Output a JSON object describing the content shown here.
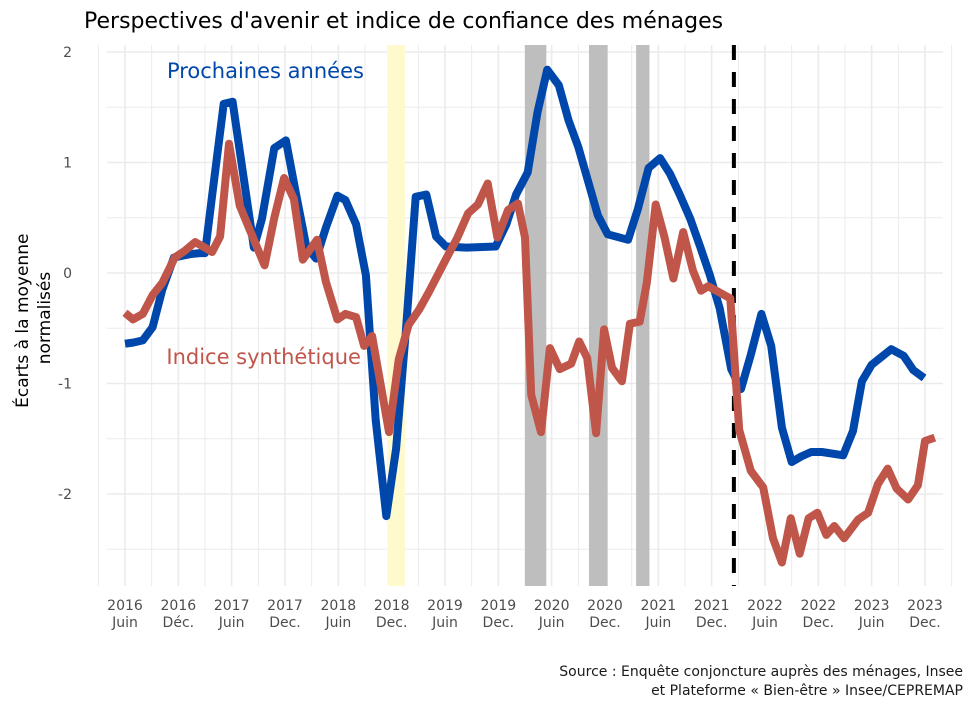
{
  "chart_data": {
    "type": "line",
    "title": "Perspectives d'avenir et indice de confiance des ménages",
    "xlabel": "",
    "ylabel_lines": [
      "Écarts à la moyenne",
      "normalisés"
    ],
    "x_unit": "months since June 2016",
    "xlim": [
      -3,
      93
    ],
    "ylim": [
      -2.8,
      2.05
    ],
    "yticks": [
      2,
      1,
      0,
      -1,
      -2
    ],
    "ytick_labels": [
      "2",
      "1",
      "0",
      "-1",
      "-2"
    ],
    "xticks": [
      0,
      6,
      12,
      18,
      24,
      30,
      36,
      42,
      48,
      54,
      60,
      66,
      72,
      78,
      84,
      90
    ],
    "xtick_labels": [
      [
        "2016",
        "Juin"
      ],
      [
        "2016",
        "Déc."
      ],
      [
        "2017",
        "Juin"
      ],
      [
        "2017",
        "Dec."
      ],
      [
        "2018",
        "Juin"
      ],
      [
        "2018",
        "Dec."
      ],
      [
        "2019",
        "Juin"
      ],
      [
        "2019",
        "Dec."
      ],
      [
        "2020",
        "Juin"
      ],
      [
        "2020",
        "Dec."
      ],
      [
        "2021",
        "Juin"
      ],
      [
        "2021",
        "Dec."
      ],
      [
        "2022",
        "Juin"
      ],
      [
        "2022",
        "Dec."
      ],
      [
        "2023",
        "Juin"
      ],
      [
        "2023",
        "Dec."
      ]
    ],
    "grid": true,
    "shaded_periods": [
      {
        "start": 29.5,
        "end": 31.5,
        "color": "#fffacd"
      },
      {
        "start": 45,
        "end": 47.4,
        "color": "#bebebe"
      },
      {
        "start": 52.2,
        "end": 54.3,
        "color": "#bebebe"
      },
      {
        "start": 57.5,
        "end": 59,
        "color": "#bebebe"
      }
    ],
    "vline": {
      "x": 68.5,
      "style": "dashed",
      "color": "#000000"
    },
    "series": [
      {
        "name": "Prochaines années",
        "color": "#0047ab",
        "x": [
          0,
          0.9,
          2,
          3.1,
          4.2,
          5.5,
          7.3,
          8.4,
          9,
          9.8,
          11.1,
          12.1,
          13.3,
          14.5,
          15.4,
          16.8,
          18.1,
          19.2,
          20.4,
          21.5,
          22.6,
          23.9,
          24.8,
          26,
          27.1,
          28.2,
          29.4,
          30.5,
          31.6,
          32.7,
          33.9,
          35,
          36.1,
          38.4,
          41.7,
          42.9,
          44,
          45.3,
          46.4,
          47.5,
          48.8,
          49.9,
          51,
          52.1,
          53.2,
          54.3,
          56.6,
          57.7,
          58.9,
          60.2,
          61.3,
          62.4,
          63.6,
          64.7,
          65.8,
          66.9,
          68.2,
          69.3,
          70.4,
          71.6,
          72.7,
          73.9,
          75,
          76.1,
          77.2,
          78.4,
          80.8,
          81.9,
          82.9,
          84,
          86.2,
          87.6,
          88.7,
          89.9
        ],
        "values": [
          -0.64,
          -0.63,
          -0.61,
          -0.49,
          -0.15,
          0.14,
          0.17,
          0.18,
          0.18,
          0.7,
          1.53,
          1.55,
          0.89,
          0.23,
          0.49,
          1.13,
          1.2,
          0.73,
          0.24,
          0.13,
          0.41,
          0.7,
          0.66,
          0.44,
          -0.02,
          -1.33,
          -2.2,
          -1.59,
          -0.52,
          0.69,
          0.71,
          0.33,
          0.24,
          0.23,
          0.24,
          0.44,
          0.71,
          0.91,
          1.45,
          1.84,
          1.7,
          1.38,
          1.14,
          0.83,
          0.52,
          0.35,
          0.3,
          0.58,
          0.95,
          1.04,
          0.9,
          0.71,
          0.49,
          0.24,
          -0.02,
          -0.32,
          -0.87,
          -1.05,
          -0.74,
          -0.37,
          -0.66,
          -1.4,
          -1.71,
          -1.66,
          -1.62,
          -1.62,
          -1.65,
          -1.43,
          -0.98,
          -0.83,
          -0.69,
          -0.75,
          -0.88,
          -0.95
        ]
      },
      {
        "name": "Indice synthétique",
        "color": "#c0564a",
        "x": [
          0,
          0.9,
          2,
          3.1,
          4.2,
          5.6,
          6.7,
          7.9,
          9,
          9.8,
          10.7,
          11.7,
          12.9,
          14.5,
          15.7,
          16.8,
          17.9,
          19,
          20,
          21.6,
          22.6,
          23.9,
          24.8,
          26,
          26.9,
          27.8,
          29.7,
          30.8,
          31.9,
          33.1,
          34.2,
          36.2,
          37.4,
          38.6,
          39.7,
          40.8,
          41.9,
          43.1,
          44.2,
          45,
          45.7,
          46.8,
          47.8,
          48.9,
          50.2,
          51.1,
          52,
          53,
          53.9,
          54.8,
          55.9,
          56.8,
          57.9,
          58.7,
          59.7,
          60.7,
          61.7,
          62.8,
          63.9,
          64.8,
          65.6,
          68.1,
          69.1,
          70.4,
          71.8,
          72.9,
          73.9,
          74.9,
          75.9,
          76.9,
          77.9,
          78.9,
          79.8,
          80.9,
          82.5,
          83.6,
          84.7,
          85.8,
          86.8,
          88.1,
          89.2,
          90,
          91.1
        ],
        "values": [
          -0.36,
          -0.42,
          -0.37,
          -0.2,
          -0.09,
          0.14,
          0.2,
          0.28,
          0.23,
          0.19,
          0.33,
          1.17,
          0.61,
          0.3,
          0.07,
          0.5,
          0.86,
          0.67,
          0.12,
          0.3,
          -0.08,
          -0.42,
          -0.37,
          -0.4,
          -0.66,
          -0.57,
          -1.44,
          -0.78,
          -0.47,
          -0.33,
          -0.17,
          0.14,
          0.32,
          0.54,
          0.62,
          0.81,
          0.32,
          0.57,
          0.63,
          0.32,
          -1.1,
          -1.44,
          -0.68,
          -0.87,
          -0.82,
          -0.62,
          -0.77,
          -1.45,
          -0.51,
          -0.86,
          -0.98,
          -0.46,
          -0.44,
          -0.09,
          0.62,
          0.32,
          -0.05,
          0.37,
          0.02,
          -0.16,
          -0.12,
          -0.23,
          -1.42,
          -1.79,
          -1.94,
          -2.4,
          -2.62,
          -2.22,
          -2.54,
          -2.22,
          -2.17,
          -2.37,
          -2.29,
          -2.4,
          -2.23,
          -2.17,
          -1.91,
          -1.77,
          -1.95,
          -2.05,
          -1.92,
          -1.52,
          -1.49
        ]
      }
    ],
    "annotations": [
      {
        "text": "Prochaines années",
        "color": "#0047ab",
        "x": 15.8,
        "y": 1.83
      },
      {
        "text": "Indice synthétique",
        "color": "#c0564a",
        "x": 15.6,
        "y": -0.76
      }
    ],
    "caption_lines": [
      "Source : Enquête conjoncture auprès des ménages, Insee",
      "et Plateforme « Bien-être » Insee/CEPREMAP"
    ]
  }
}
